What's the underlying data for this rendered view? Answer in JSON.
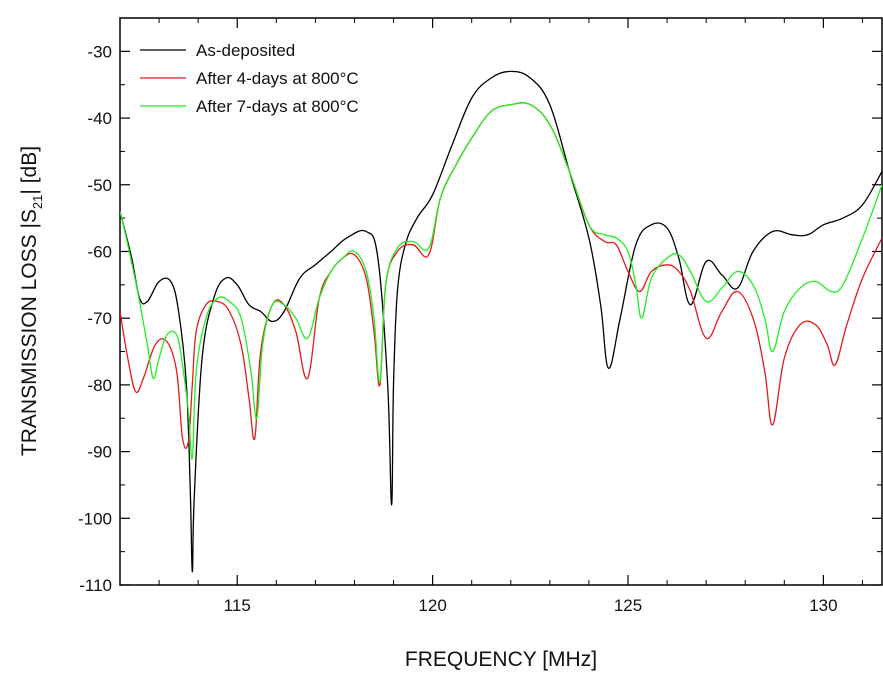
{
  "chart_data": {
    "type": "line",
    "xlabel": "FREQUENCY [MHz]",
    "ylabel": "TRANSMISSION LOSS |S21| [dB]",
    "ylabel_parts": {
      "before": "TRANSMISSION LOSS |S",
      "sub": "21",
      "after": "| [dB]"
    },
    "xlim": [
      112,
      131.5
    ],
    "ylim": [
      -110,
      -25
    ],
    "xticks": [
      115,
      120,
      125,
      130
    ],
    "yticks": [
      -30,
      -40,
      -50,
      -60,
      -70,
      -80,
      -90,
      -100,
      -110
    ],
    "xtick_labels": [
      "115",
      "120",
      "125",
      "130"
    ],
    "ytick_labels": [
      "-30",
      "-40",
      "-50",
      "-60",
      "-70",
      "-80",
      "-90",
      "-100",
      "-110"
    ],
    "legend_position": "top-left",
    "series": [
      {
        "name": "As-deposited",
        "color": "#000000",
        "x": [
          112.0,
          112.3,
          112.5,
          112.7,
          113.0,
          113.3,
          113.5,
          113.7,
          113.8,
          113.85,
          113.9,
          114.1,
          114.4,
          114.7,
          115.0,
          115.3,
          115.6,
          115.9,
          116.2,
          116.6,
          117.0,
          117.4,
          117.8,
          118.3,
          118.6,
          118.85,
          118.95,
          119.0,
          119.1,
          119.3,
          119.6,
          120.0,
          120.5,
          121.0,
          121.5,
          122.0,
          122.5,
          123.0,
          123.5,
          124.0,
          124.3,
          124.5,
          124.8,
          125.2,
          125.6,
          126.0,
          126.3,
          126.6,
          127.0,
          127.4,
          127.8,
          128.2,
          128.7,
          129.2,
          129.6,
          130.0,
          130.5,
          131.0,
          131.5
        ],
        "y": [
          -54,
          -61,
          -67,
          -67.5,
          -64.5,
          -64.5,
          -69,
          -80,
          -96,
          -108,
          -97,
          -76,
          -67,
          -64,
          -65,
          -68,
          -69,
          -70.5,
          -69,
          -64,
          -62,
          -60,
          -58,
          -57,
          -61,
          -80,
          -98,
          -80,
          -66,
          -59,
          -55,
          -51.5,
          -44,
          -37,
          -34,
          -33,
          -34,
          -38,
          -48,
          -58,
          -68,
          -77.5,
          -70,
          -59,
          -56,
          -56.5,
          -61,
          -68,
          -61.5,
          -63.5,
          -65.5,
          -60,
          -57,
          -57.5,
          -57.5,
          -56,
          -55,
          -53,
          -48
        ]
      },
      {
        "name": "After 4-days at 800°C",
        "color": "#e41a1c",
        "x": [
          112.0,
          112.2,
          112.4,
          112.6,
          112.9,
          113.2,
          113.45,
          113.6,
          113.75,
          113.85,
          113.95,
          114.2,
          114.5,
          114.8,
          115.1,
          115.3,
          115.45,
          115.6,
          115.9,
          116.2,
          116.5,
          116.8,
          117.1,
          117.4,
          117.7,
          118.0,
          118.3,
          118.5,
          118.65,
          118.8,
          119.1,
          119.5,
          119.9,
          120.2,
          120.6,
          121.0,
          121.5,
          122.0,
          122.5,
          123.0,
          123.5,
          124.0,
          124.4,
          124.7,
          125.0,
          125.3,
          125.6,
          126.0,
          126.3,
          126.6,
          127.0,
          127.4,
          127.8,
          128.2,
          128.5,
          128.7,
          129.0,
          129.4,
          129.8,
          130.1,
          130.3,
          130.6,
          131.0,
          131.5
        ],
        "y": [
          -69,
          -76,
          -81,
          -79,
          -74,
          -73.5,
          -78,
          -88,
          -88.5,
          -80,
          -72,
          -68,
          -67.5,
          -69,
          -74,
          -82,
          -88,
          -75,
          -68,
          -68,
          -72,
          -79,
          -67,
          -63,
          -61,
          -60.5,
          -64,
          -72,
          -80,
          -65,
          -60,
          -59,
          -60.5,
          -52,
          -47,
          -43,
          -39,
          -38,
          -38,
          -41,
          -48,
          -56,
          -58.5,
          -59,
          -63,
          -66,
          -63,
          -62,
          -63,
          -66,
          -73,
          -69,
          -66,
          -70,
          -78,
          -86,
          -76,
          -71,
          -71,
          -74,
          -77,
          -71,
          -64,
          -58
        ]
      },
      {
        "name": "After 7-days at 800°C",
        "color": "#22ee22",
        "x": [
          112.0,
          112.2,
          112.45,
          112.7,
          112.85,
          113.0,
          113.2,
          113.45,
          113.6,
          113.75,
          113.85,
          113.95,
          114.2,
          114.5,
          114.8,
          115.1,
          115.35,
          115.5,
          115.65,
          115.9,
          116.2,
          116.5,
          116.8,
          117.1,
          117.4,
          117.7,
          118.0,
          118.3,
          118.5,
          118.65,
          118.8,
          119.1,
          119.5,
          119.9,
          120.2,
          120.6,
          121.0,
          121.5,
          122.0,
          122.5,
          123.0,
          123.5,
          124.0,
          124.4,
          124.7,
          125.0,
          125.2,
          125.35,
          125.6,
          126.0,
          126.3,
          126.6,
          127.0,
          127.4,
          127.8,
          128.2,
          128.5,
          128.7,
          129.0,
          129.4,
          129.8,
          130.2,
          130.5,
          131.0,
          131.5
        ],
        "y": [
          -54,
          -59,
          -66,
          -74,
          -79,
          -76,
          -72.5,
          -72.5,
          -77,
          -84,
          -91,
          -78,
          -70,
          -67,
          -67.5,
          -70,
          -78,
          -85,
          -74,
          -68,
          -68,
          -70,
          -73,
          -67,
          -63,
          -61,
          -60,
          -63,
          -70,
          -79.5,
          -65,
          -59.5,
          -58.5,
          -59.5,
          -52,
          -47,
          -43,
          -39,
          -38,
          -38,
          -41,
          -48,
          -56,
          -57.5,
          -58,
          -60,
          -65,
          -70,
          -64,
          -61,
          -60.5,
          -63,
          -67.5,
          -65.5,
          -63,
          -65,
          -70,
          -75,
          -69,
          -65.5,
          -64.5,
          -66,
          -65,
          -58,
          -50
        ]
      }
    ]
  }
}
